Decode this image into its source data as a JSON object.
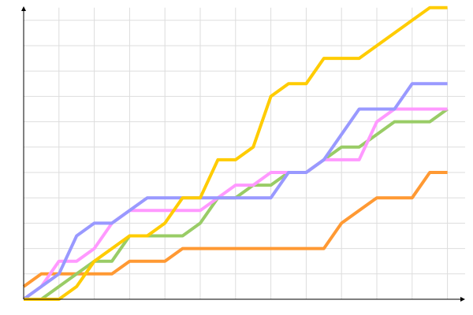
{
  "chart_data": {
    "type": "line",
    "x": [
      0,
      1,
      2,
      3,
      4,
      5,
      6,
      7,
      8,
      9,
      10,
      11,
      12,
      13,
      14,
      15,
      16,
      17,
      18,
      19,
      20,
      21,
      22,
      23,
      24
    ],
    "xlim": [
      0,
      25
    ],
    "ylim": [
      0,
      11.5
    ],
    "xticks": [
      2,
      4,
      6,
      8,
      10,
      12,
      14,
      16,
      18,
      20,
      22,
      24
    ],
    "yticks": [
      1,
      2,
      3,
      4,
      5,
      6,
      7,
      8,
      9,
      10,
      11
    ],
    "grid": true,
    "series": [
      {
        "color": "#ff9933",
        "values": [
          0.5,
          1,
          1,
          1,
          1,
          1,
          1.5,
          1.5,
          1.5,
          2,
          2,
          2,
          2,
          2,
          2,
          2,
          2,
          2,
          3,
          3.5,
          4,
          4,
          4,
          5,
          5
        ]
      },
      {
        "color": "#99cc66",
        "values": [
          0,
          0,
          0.5,
          1,
          1.5,
          1.5,
          2.5,
          2.5,
          2.5,
          2.5,
          3,
          4,
          4,
          4.5,
          4.5,
          5,
          5,
          5.5,
          6,
          6,
          6.5,
          7,
          7,
          7,
          7.5
        ]
      },
      {
        "color": "#ff99ff",
        "values": [
          0,
          0.5,
          1.5,
          1.5,
          2,
          3,
          3.5,
          3.5,
          3.5,
          3.5,
          3.5,
          4,
          4.5,
          4.5,
          5,
          5,
          5,
          5.5,
          5.5,
          5.5,
          7,
          7.5,
          7.5,
          7.5,
          7.5
        ]
      },
      {
        "color": "#9999ff",
        "values": [
          0,
          0.5,
          1,
          2.5,
          3,
          3,
          3.5,
          4,
          4,
          4,
          4,
          4,
          4,
          4,
          4,
          5,
          5,
          5.5,
          6.5,
          7.5,
          7.5,
          7.5,
          8.5,
          8.5,
          8.5
        ]
      },
      {
        "color": "#ffcc00",
        "values": [
          0,
          0,
          0,
          0.5,
          1.5,
          2,
          2.5,
          2.5,
          3,
          4,
          4,
          5.5,
          5.5,
          6,
          8,
          8.5,
          8.5,
          9.5,
          9.5,
          9.5,
          10,
          10.5,
          11,
          11.5,
          11.5
        ]
      }
    ]
  }
}
